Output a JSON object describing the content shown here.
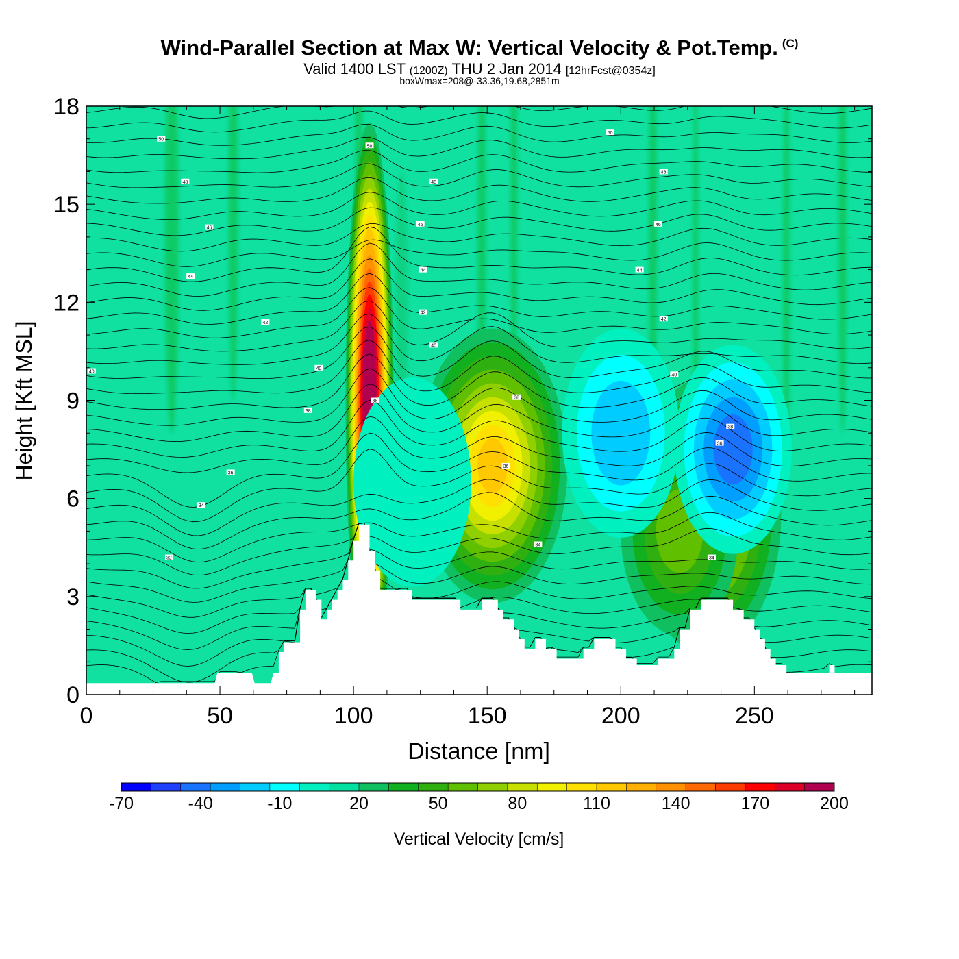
{
  "header": {
    "title_main": "Wind-Parallel Section at Max W: Vertical Velocity & Pot.Temp.",
    "title_copyright": "(C)",
    "subtitle_valid": "Valid 1400 LST",
    "subtitle_utc": "(1200Z)",
    "subtitle_date": "THU 2 Jan 2014",
    "subtitle_fcst": "[12hrFcst@0354z]",
    "boxwmax": "boxWmax=208@-33.36,19.68,2851m"
  },
  "chart_data": {
    "type": "heatmap",
    "xlabel": "Distance [nm]",
    "ylabel": "Height [Kft MSL]",
    "xlim": [
      0,
      294
    ],
    "ylim": [
      0,
      18
    ],
    "x_ticks": [
      0,
      50,
      100,
      150,
      200,
      250
    ],
    "y_ticks": [
      0,
      3,
      6,
      9,
      12,
      15,
      18
    ],
    "fill_variable": "Vertical Velocity [cm/s]",
    "contour_variable": "Pot.Temp.",
    "colorbar": {
      "label": "Vertical Velocity [cm/s]",
      "min": -70,
      "max": 200,
      "step": 10,
      "tick_labels": [
        "-70",
        "-40",
        "-10",
        "20",
        "50",
        "80",
        "110",
        "140",
        "170",
        "200"
      ],
      "colors": [
        "#0000ff",
        "#1f40ff",
        "#1a73ff",
        "#009fff",
        "#00ccff",
        "#00ffff",
        "#00f0c0",
        "#00e0a0",
        "#10c060",
        "#10b020",
        "#30b010",
        "#60c000",
        "#90d000",
        "#c8e000",
        "#f0f000",
        "#ffe000",
        "#ffc800",
        "#ffb000",
        "#ff9000",
        "#ff6a00",
        "#ff3c00",
        "#ff0000",
        "#dc0028",
        "#b00050"
      ]
    },
    "background_color": "#10e0a0",
    "terrain_profile": [
      [
        0,
        0.35
      ],
      [
        12,
        0.35
      ],
      [
        24,
        0.35
      ],
      [
        48,
        0.35
      ],
      [
        49,
        0.65
      ],
      [
        62,
        0.65
      ],
      [
        63,
        0.35
      ],
      [
        69,
        0.35
      ],
      [
        70,
        0.65
      ],
      [
        72,
        0.65
      ],
      [
        72,
        1.3
      ],
      [
        74,
        1.3
      ],
      [
        74,
        1.6
      ],
      [
        80,
        1.6
      ],
      [
        80,
        2.6
      ],
      [
        82,
        2.6
      ],
      [
        82,
        3.2
      ],
      [
        86,
        3.2
      ],
      [
        86,
        2.9
      ],
      [
        88,
        2.9
      ],
      [
        88,
        2.3
      ],
      [
        90,
        2.3
      ],
      [
        90,
        2.6
      ],
      [
        92,
        2.6
      ],
      [
        92,
        2.9
      ],
      [
        94,
        2.9
      ],
      [
        94,
        3.2
      ],
      [
        96,
        3.2
      ],
      [
        96,
        3.5
      ],
      [
        98,
        3.5
      ],
      [
        98,
        4.1
      ],
      [
        100,
        4.1
      ],
      [
        100,
        4.7
      ],
      [
        102,
        4.7
      ],
      [
        102,
        5.2
      ],
      [
        106,
        5.2
      ],
      [
        106,
        4.4
      ],
      [
        108,
        4.4
      ],
      [
        108,
        3.8
      ],
      [
        110,
        3.8
      ],
      [
        110,
        3.2
      ],
      [
        122,
        3.2
      ],
      [
        122,
        2.9
      ],
      [
        140,
        2.9
      ],
      [
        140,
        2.6
      ],
      [
        148,
        2.6
      ],
      [
        148,
        2.9
      ],
      [
        154,
        2.9
      ],
      [
        154,
        2.6
      ],
      [
        156,
        2.6
      ],
      [
        156,
        2.3
      ],
      [
        160,
        2.3
      ],
      [
        160,
        2.0
      ],
      [
        162,
        2.0
      ],
      [
        162,
        1.7
      ],
      [
        164,
        1.7
      ],
      [
        164,
        1.4
      ],
      [
        168,
        1.4
      ],
      [
        168,
        1.7
      ],
      [
        172,
        1.7
      ],
      [
        172,
        1.4
      ],
      [
        176,
        1.4
      ],
      [
        176,
        1.1
      ],
      [
        186,
        1.1
      ],
      [
        186,
        1.4
      ],
      [
        190,
        1.4
      ],
      [
        190,
        1.7
      ],
      [
        198,
        1.7
      ],
      [
        198,
        1.4
      ],
      [
        202,
        1.4
      ],
      [
        202,
        1.1
      ],
      [
        206,
        1.1
      ],
      [
        206,
        0.9
      ],
      [
        214,
        0.9
      ],
      [
        214,
        1.1
      ],
      [
        220,
        1.1
      ],
      [
        220,
        1.4
      ],
      [
        222,
        1.4
      ],
      [
        222,
        2.0
      ],
      [
        226,
        2.0
      ],
      [
        226,
        2.6
      ],
      [
        230,
        2.6
      ],
      [
        230,
        2.9
      ],
      [
        242,
        2.9
      ],
      [
        242,
        2.6
      ],
      [
        246,
        2.6
      ],
      [
        246,
        2.3
      ],
      [
        250,
        2.3
      ],
      [
        250,
        2.0
      ],
      [
        252,
        2.0
      ],
      [
        252,
        1.7
      ],
      [
        254,
        1.7
      ],
      [
        254,
        1.4
      ],
      [
        256,
        1.4
      ],
      [
        256,
        1.1
      ],
      [
        258,
        1.1
      ],
      [
        258,
        0.9
      ],
      [
        262,
        0.9
      ],
      [
        262,
        0.65
      ],
      [
        278,
        0.65
      ],
      [
        278,
        0.9
      ],
      [
        280,
        0.9
      ],
      [
        280,
        0.65
      ],
      [
        294,
        0.65
      ]
    ],
    "velocity_features": [
      {
        "label": "updraft core",
        "x": 106,
        "z": 9.0,
        "peak_cm_s": 208
      },
      {
        "label": "updraft",
        "x": 152,
        "z": 7.0,
        "peak_cm_s": 90
      },
      {
        "label": "updraft",
        "x": 232,
        "z": 5.5,
        "peak_cm_s": 70
      },
      {
        "label": "updraft",
        "x": 222,
        "z": 5.0,
        "peak_cm_s": 45
      },
      {
        "label": "downdraft",
        "x": 242,
        "z": 7.5,
        "peak_cm_s": -55
      },
      {
        "label": "downdraft",
        "x": 122,
        "z": 6.5,
        "peak_cm_s": -15
      },
      {
        "label": "downdraft",
        "x": 200,
        "z": 8.0,
        "peak_cm_s": -30
      }
    ],
    "contour_labels": [
      {
        "text": "50",
        "x": 28,
        "z": 17.0
      },
      {
        "text": "50",
        "x": 196,
        "z": 17.2
      },
      {
        "text": "50",
        "x": 106,
        "z": 16.8
      },
      {
        "text": "48",
        "x": 37,
        "z": 15.7
      },
      {
        "text": "48",
        "x": 130,
        "z": 15.7
      },
      {
        "text": "48",
        "x": 216,
        "z": 16.0
      },
      {
        "text": "46",
        "x": 46,
        "z": 14.3
      },
      {
        "text": "46",
        "x": 125,
        "z": 14.4
      },
      {
        "text": "46",
        "x": 214,
        "z": 14.4
      },
      {
        "text": "44",
        "x": 39,
        "z": 12.8
      },
      {
        "text": "44",
        "x": 126,
        "z": 13.0
      },
      {
        "text": "44",
        "x": 207,
        "z": 13.0
      },
      {
        "text": "42",
        "x": 67,
        "z": 11.4
      },
      {
        "text": "42",
        "x": 126,
        "z": 11.7
      },
      {
        "text": "42",
        "x": 216,
        "z": 11.5
      },
      {
        "text": "40",
        "x": 2,
        "z": 9.9
      },
      {
        "text": "40",
        "x": 87,
        "z": 10.0
      },
      {
        "text": "40",
        "x": 130,
        "z": 10.7
      },
      {
        "text": "40",
        "x": 220,
        "z": 9.8
      },
      {
        "text": "38",
        "x": 83,
        "z": 8.7
      },
      {
        "text": "38",
        "x": 108,
        "z": 9.0
      },
      {
        "text": "38",
        "x": 161,
        "z": 9.1
      },
      {
        "text": "38",
        "x": 241,
        "z": 8.2
      },
      {
        "text": "36",
        "x": 54,
        "z": 6.8
      },
      {
        "text": "36",
        "x": 157,
        "z": 7.0
      },
      {
        "text": "36",
        "x": 237,
        "z": 7.7
      },
      {
        "text": "34",
        "x": 43,
        "z": 5.8
      },
      {
        "text": "34",
        "x": 169,
        "z": 4.6
      },
      {
        "text": "34",
        "x": 234,
        "z": 4.2
      },
      {
        "text": "32",
        "x": 31,
        "z": 4.2
      }
    ]
  }
}
